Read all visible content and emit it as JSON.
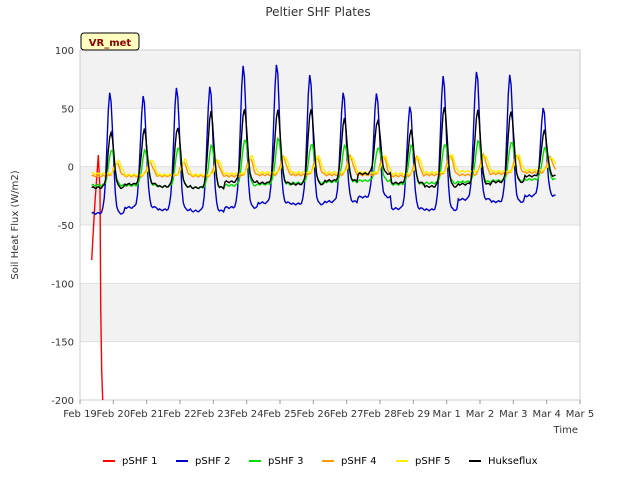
{
  "chart_data": {
    "type": "line",
    "title": "Peltier SHF Plates",
    "xlabel": "Time",
    "ylabel": "Soil Heat Flux (W/m2)",
    "badge": "VR_met",
    "ylim": [
      -200,
      100
    ],
    "xlim": [
      0,
      15
    ],
    "yticks": [
      100,
      50,
      0,
      -50,
      -100,
      -150,
      -200
    ],
    "xticks": [
      {
        "pos": 0,
        "label": "Feb 19"
      },
      {
        "pos": 1,
        "label": "Feb 20"
      },
      {
        "pos": 2,
        "label": "Feb 21"
      },
      {
        "pos": 3,
        "label": "Feb 22"
      },
      {
        "pos": 4,
        "label": "Feb 23"
      },
      {
        "pos": 5,
        "label": "Feb 24"
      },
      {
        "pos": 6,
        "label": "Feb 25"
      },
      {
        "pos": 7,
        "label": "Feb 26"
      },
      {
        "pos": 8,
        "label": "Feb 27"
      },
      {
        "pos": 9,
        "label": "Feb 28"
      },
      {
        "pos": 10,
        "label": "Feb 29"
      },
      {
        "pos": 11,
        "label": "Mar 1"
      },
      {
        "pos": 12,
        "label": "Mar 2"
      },
      {
        "pos": 13,
        "label": "Mar 3"
      },
      {
        "pos": 14,
        "label": "Mar 4"
      },
      {
        "pos": 15,
        "label": "Mar 5"
      }
    ],
    "grid": true,
    "legend_position": "bottom",
    "x_units": "days since Feb 19",
    "series": [
      {
        "name": "pSHF 1",
        "color": "#ff0000",
        "x": [
          0.35,
          0.4,
          0.45,
          0.5,
          0.55,
          0.6,
          0.62,
          0.65,
          0.68
        ],
        "y": [
          -80,
          -55,
          -30,
          -10,
          10,
          -20,
          -120,
          -175,
          -200
        ]
      },
      {
        "name": "pSHF 2",
        "color": "#0000cc",
        "points_per_day": 24,
        "x_start": 0.35,
        "peaks": [
          64,
          61,
          68,
          69,
          87,
          88,
          79,
          64,
          63,
          52,
          78,
          82,
          79,
          51
        ],
        "troughs": [
          -40,
          -35,
          -37,
          -38,
          -35,
          -31,
          -32,
          -30,
          -26,
          -36,
          -37,
          -28,
          -30,
          -25
        ],
        "peak_phase": 0.55
      },
      {
        "name": "pSHF 3",
        "color": "#00dd00",
        "points_per_day": 24,
        "x_start": 0.35,
        "peaks": [
          15,
          14,
          17,
          18,
          24,
          24,
          20,
          18,
          17,
          18,
          20,
          22,
          22,
          16
        ],
        "troughs": [
          -16,
          -16,
          -17,
          -18,
          -16,
          -15,
          -14,
          -13,
          -12,
          -15,
          -14,
          -13,
          -12,
          -11
        ],
        "peak_phase": 0.6
      },
      {
        "name": "pSHF 4",
        "color": "#ff9900",
        "points_per_day": 24,
        "x_start": 0.35,
        "peaks": [
          3,
          4,
          4,
          5,
          7,
          8,
          8,
          9,
          9,
          8,
          10,
          10,
          10,
          8
        ],
        "troughs": [
          -8,
          -8,
          -8,
          -8,
          -8,
          -7,
          -7,
          -7,
          -7,
          -8,
          -7,
          -7,
          -6,
          -5
        ],
        "peak_phase": 0.75
      },
      {
        "name": "pSHF 5",
        "color": "#ffee00",
        "points_per_day": 24,
        "x_start": 0.35,
        "peaks": [
          5,
          6,
          6,
          6,
          9,
          9,
          9,
          9,
          9,
          9,
          10,
          10,
          10,
          8
        ],
        "troughs": [
          -6,
          -7,
          -7,
          -7,
          -6,
          -5,
          -5,
          -5,
          -5,
          -6,
          -5,
          -4,
          -4,
          -3
        ],
        "peak_phase": 0.8
      },
      {
        "name": "Hukseflux",
        "color": "#000000",
        "points_per_day": 24,
        "x_start": 0.35,
        "peaks": [
          30,
          32,
          34,
          47,
          50,
          48,
          50,
          41,
          40,
          31,
          52,
          48,
          48,
          31
        ],
        "troughs": [
          -18,
          -15,
          -17,
          -18,
          -13,
          -14,
          -15,
          -12,
          -6,
          -14,
          -17,
          -15,
          -13,
          -8
        ],
        "peak_phase": 0.58
      }
    ]
  }
}
